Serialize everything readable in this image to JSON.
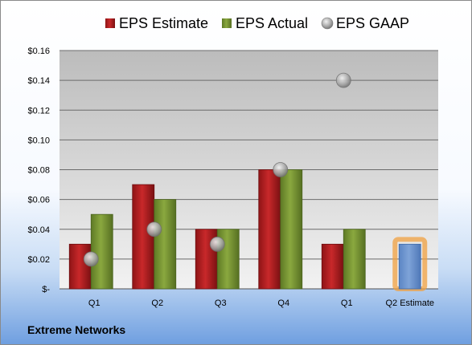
{
  "company": "Extreme Networks",
  "colors": {
    "estimate": "#c8282a",
    "actual": "#8aa83f",
    "gaap": "#a8a8a8",
    "future_estimate": "#7ea3d8",
    "future_estimate_glow": "#f0a040"
  },
  "chart_data": {
    "type": "bar",
    "categories": [
      "Q1",
      "Q2",
      "Q3",
      "Q4",
      "Q1",
      "Q2 Estimate"
    ],
    "series": [
      {
        "name": "EPS Estimate",
        "values": [
          0.03,
          0.07,
          0.04,
          0.08,
          0.03,
          null
        ]
      },
      {
        "name": "EPS Actual",
        "values": [
          0.05,
          0.06,
          0.04,
          0.08,
          0.04,
          null
        ]
      },
      {
        "name": "EPS GAAP",
        "type": "scatter",
        "values": [
          0.02,
          0.04,
          0.03,
          0.08,
          0.14,
          null
        ]
      }
    ],
    "estimate_only": {
      "category": "Q2 Estimate",
      "value": 0.03
    },
    "ylim": [
      0,
      0.16
    ],
    "yticks": [
      0,
      0.02,
      0.04,
      0.06,
      0.08,
      0.1,
      0.12,
      0.14,
      0.16
    ],
    "ytick_labels": [
      "$-",
      "$0.02",
      "$0.04",
      "$0.06",
      "$0.08",
      "$0.10",
      "$0.12",
      "$0.14",
      "$0.16"
    ],
    "grid": true,
    "legend": "top"
  }
}
